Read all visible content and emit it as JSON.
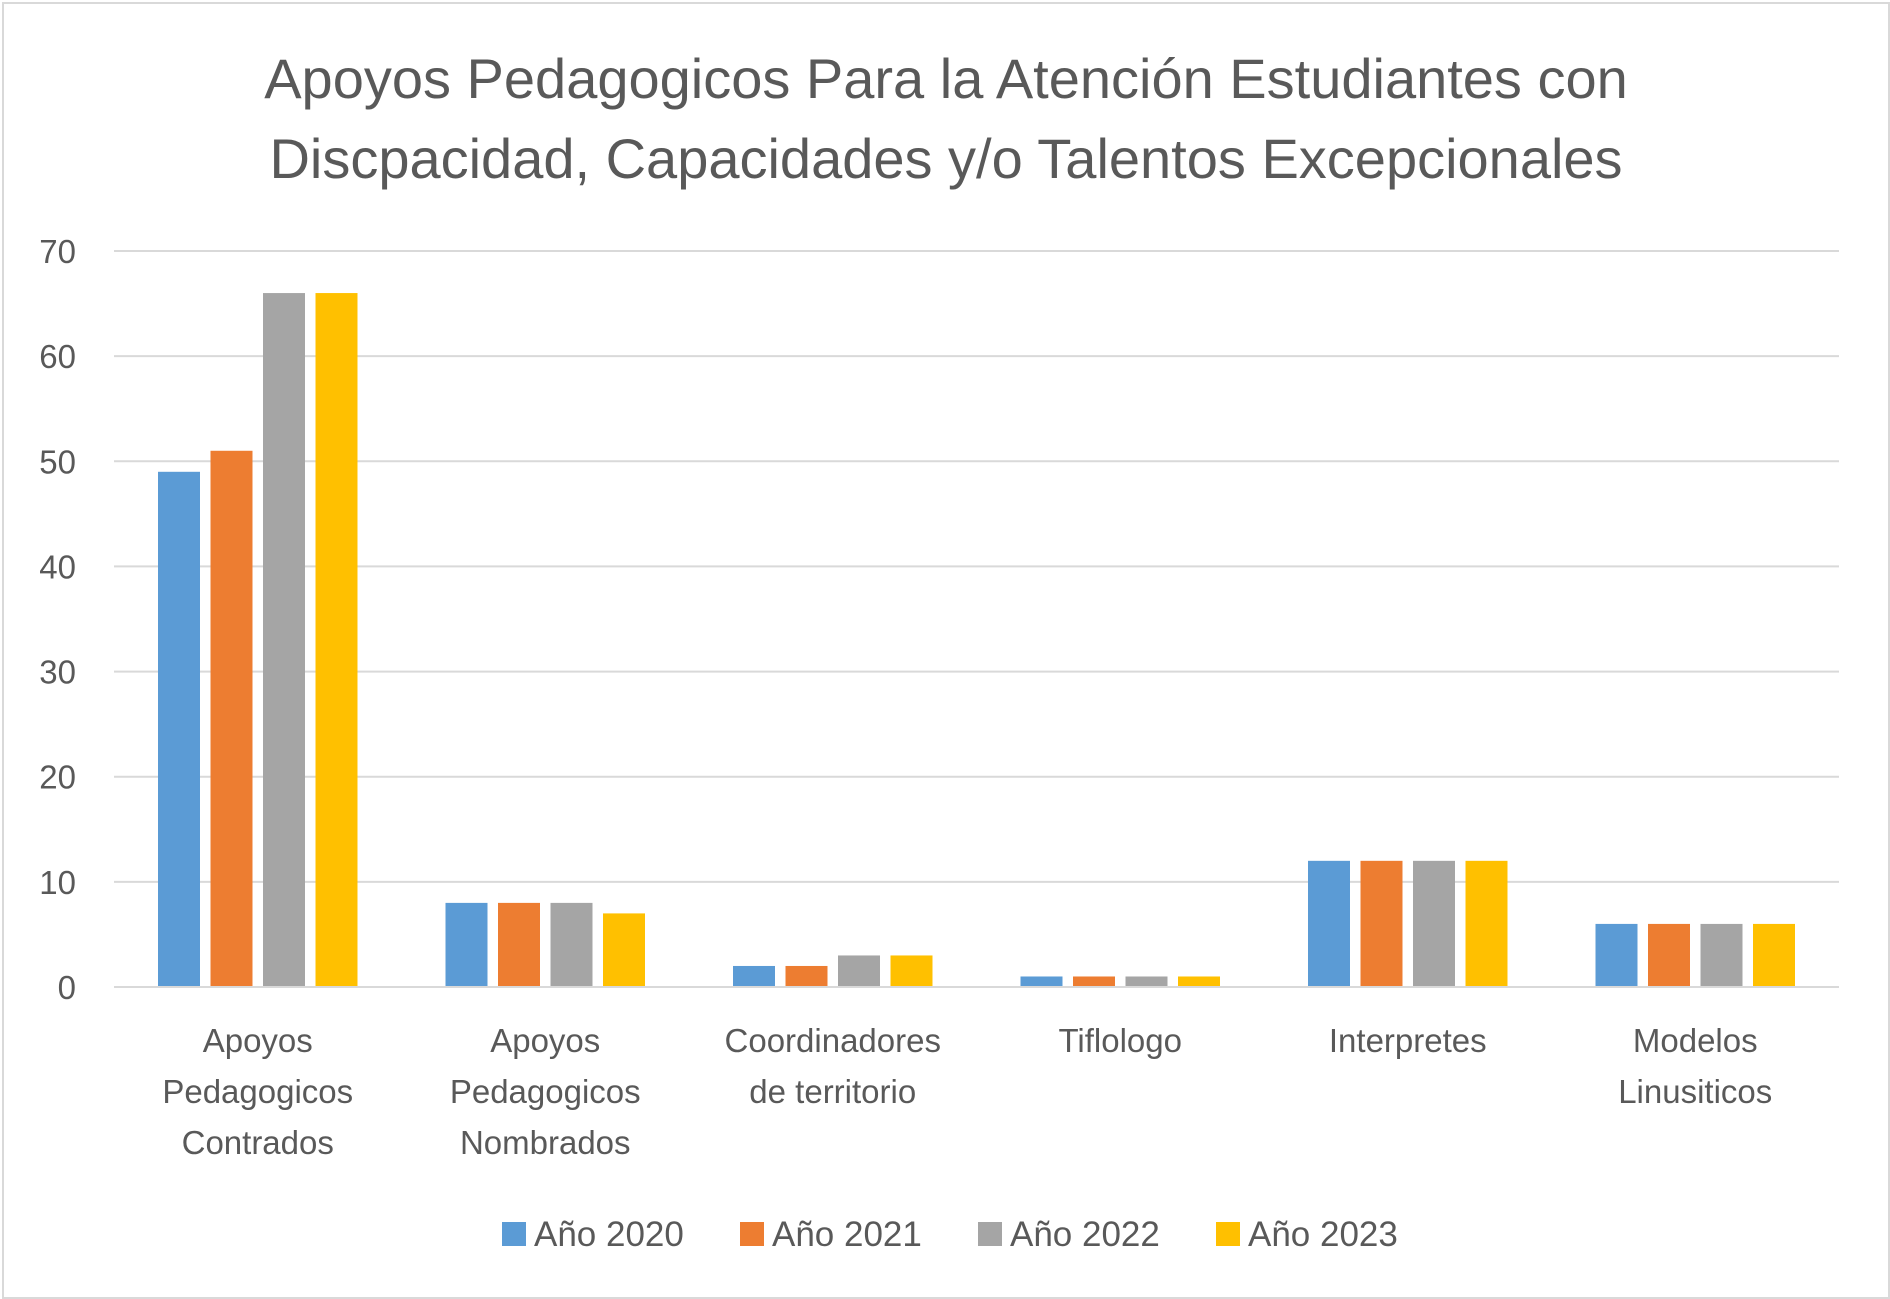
{
  "chart_data": {
    "type": "bar",
    "title_lines": [
      "Apoyos Pedagogicos Para la Atención Estudiantes con",
      "Discpacidad, Capacidades y/o Talentos Excepcionales"
    ],
    "categories": [
      [
        "Apoyos",
        "Pedagogicos",
        "Contrados"
      ],
      [
        "Apoyos",
        "Pedagogicos",
        "Nombrados"
      ],
      [
        "Coordinadores",
        "de territorio"
      ],
      [
        "Tiflologo"
      ],
      [
        "Interpretes"
      ],
      [
        "Modelos",
        "Linusiticos"
      ]
    ],
    "series": [
      {
        "name": "Año 2020",
        "color": "#5b9bd5",
        "values": [
          49,
          8,
          2,
          1,
          12,
          6
        ]
      },
      {
        "name": "Año 2021",
        "color": "#ed7d31",
        "values": [
          51,
          8,
          2,
          1,
          12,
          6
        ]
      },
      {
        "name": "Año 2022",
        "color": "#a5a5a5",
        "values": [
          66,
          8,
          3,
          1,
          12,
          6
        ]
      },
      {
        "name": "Año 2023",
        "color": "#ffc000",
        "values": [
          66,
          7,
          3,
          1,
          12,
          6
        ]
      }
    ],
    "ylim": [
      0,
      70
    ],
    "yticks": [
      0,
      10,
      20,
      30,
      40,
      50,
      60,
      70
    ],
    "grid": true,
    "legend_position": "bottom",
    "gridline_color": "#d9d9d9",
    "axis_color": "#d9d9d9"
  }
}
